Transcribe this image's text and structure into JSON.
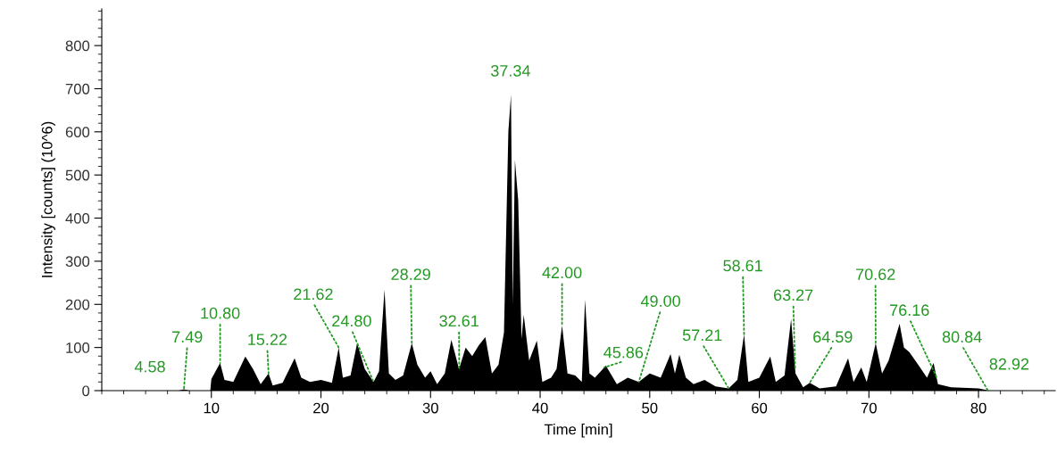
{
  "chart_data": {
    "type": "area",
    "xlabel": "Time [min]",
    "ylabel": "Intensity [counts] (10^6)",
    "xlim": [
      0,
      87
    ],
    "ylim": [
      0,
      885
    ],
    "xticks": [
      10,
      20,
      30,
      40,
      50,
      60,
      70,
      80
    ],
    "yticks": [
      0,
      100,
      200,
      300,
      400,
      500,
      600,
      700,
      800
    ],
    "grid": false,
    "legend": false,
    "series": [
      {
        "color": "#000000",
        "x": [
          0,
          7.0,
          7.49,
          8.0,
          9.9,
          10,
          10.8,
          11.2,
          12.0,
          13.1,
          13.8,
          14.5,
          15.22,
          15.6,
          16.5,
          17.6,
          18.2,
          19.0,
          20.0,
          21.0,
          21.62,
          22.0,
          22.7,
          23.3,
          24.0,
          24.8,
          25.3,
          25.8,
          26.2,
          26.8,
          27.5,
          28.29,
          28.8,
          29.5,
          30.0,
          30.6,
          31.3,
          31.9,
          32.6,
          33.2,
          33.8,
          34.4,
          35.0,
          35.6,
          36.2,
          36.7,
          37.1,
          37.34,
          37.5,
          37.7,
          38.0,
          38.3,
          38.5,
          39.0,
          39.7,
          40.2,
          41.0,
          41.5,
          42.0,
          42.5,
          43.2,
          43.8,
          44.1,
          44.5,
          45.0,
          46.0,
          47.0,
          48.0,
          49.0,
          50.0,
          51.0,
          51.9,
          52.3,
          52.7,
          53.3,
          54.0,
          55.0,
          56.0,
          57.2,
          58.0,
          58.61,
          59.0,
          60.0,
          61.0,
          61.5,
          62.3,
          62.9,
          63.3,
          64.0,
          64.6,
          65.5,
          67.0,
          68.1,
          68.6,
          69.3,
          69.8,
          70.62,
          71.2,
          71.8,
          72.8,
          73.2,
          73.7,
          74.5,
          75.3,
          75.9,
          76.3,
          77.5,
          80,
          81,
          87
        ],
        "values": [
          0,
          0,
          3,
          0,
          0,
          27,
          64,
          25,
          20,
          79,
          50,
          15,
          40,
          12,
          18,
          75,
          30,
          20,
          25,
          18,
          100,
          30,
          35,
          110,
          50,
          20,
          45,
          234,
          40,
          25,
          35,
          110,
          60,
          30,
          45,
          15,
          40,
          118,
          50,
          100,
          80,
          105,
          124,
          40,
          60,
          135,
          600,
          686,
          200,
          535,
          441,
          120,
          176,
          70,
          116,
          20,
          30,
          50,
          151,
          40,
          35,
          20,
          211,
          40,
          30,
          58,
          15,
          30,
          20,
          40,
          30,
          85,
          40,
          83,
          30,
          15,
          25,
          10,
          5,
          25,
          131,
          20,
          30,
          79,
          20,
          35,
          166,
          40,
          8,
          18,
          5,
          10,
          75,
          20,
          54,
          20,
          110,
          40,
          70,
          155,
          100,
          89,
          60,
          30,
          64,
          15,
          8,
          5,
          0,
          0
        ]
      }
    ],
    "annotations": [
      {
        "text": "4.58",
        "x": 4.58,
        "y": 0
      },
      {
        "text": "7.49",
        "x": 7.49,
        "y": 3
      },
      {
        "text": "10.80",
        "x": 10.8,
        "y": 64
      },
      {
        "text": "15.22",
        "x": 15.22,
        "y": 40
      },
      {
        "text": "21.62",
        "x": 21.62,
        "y": 100
      },
      {
        "text": "24.80",
        "x": 24.8,
        "y": 20
      },
      {
        "text": "28.29",
        "x": 28.29,
        "y": 110
      },
      {
        "text": "32.61",
        "x": 32.61,
        "y": 51
      },
      {
        "text": "37.34",
        "x": 37.34,
        "y": 686
      },
      {
        "text": "42.00",
        "x": 42.0,
        "y": 151
      },
      {
        "text": "45.86",
        "x": 45.86,
        "y": 54
      },
      {
        "text": "49.00",
        "x": 49.0,
        "y": 20
      },
      {
        "text": "57.21",
        "x": 57.21,
        "y": 5
      },
      {
        "text": "58.61",
        "x": 58.61,
        "y": 131
      },
      {
        "text": "63.27",
        "x": 63.27,
        "y": 49
      },
      {
        "text": "64.59",
        "x": 64.59,
        "y": 18
      },
      {
        "text": "70.62",
        "x": 70.62,
        "y": 110
      },
      {
        "text": "76.16",
        "x": 76.16,
        "y": 32
      },
      {
        "text": "80.84",
        "x": 80.84,
        "y": 1
      },
      {
        "text": "82.92",
        "x": 82.92,
        "y": 0
      }
    ]
  }
}
